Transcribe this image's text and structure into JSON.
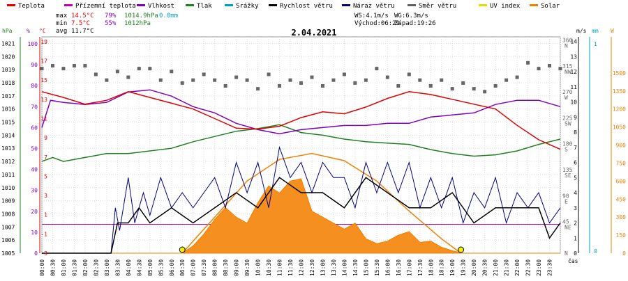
{
  "chart_data": {
    "type": "line",
    "title": "2.04.2021",
    "legend": [
      {
        "name": "Teplota",
        "color": "#e00000"
      },
      {
        "name": "Přízemní teplota",
        "color": "#c000c0"
      },
      {
        "name": "Vlhkost",
        "color": "#8000c0"
      },
      {
        "name": "Tlak",
        "color": "#208020"
      },
      {
        "name": "Srážky",
        "color": "#00a0c0"
      },
      {
        "name": "Rychlost větru",
        "color": "#000000"
      },
      {
        "name": "Náraz větru",
        "color": "#000080"
      },
      {
        "name": "Směr větru",
        "color": "#606060"
      },
      {
        "name": "UV index",
        "color": "#e0e000"
      },
      {
        "name": "Solar",
        "color": "#f08000"
      }
    ],
    "stats": {
      "max_label": "max",
      "max_temp": "14.5°C",
      "max_hum": "79%",
      "max_press": "1014.9hPa",
      "rain": "0.0mm",
      "min_label": "min",
      "min_temp": "7.5°C",
      "min_hum": "55%",
      "min_press": "1012hPa",
      "avg_label": "avg",
      "avg_temp": "11.7°C",
      "ws": "WS:4.1m/s",
      "wg": "WG:6.3m/s",
      "sunrise": "Východ:06:29",
      "sunset": "Západ:19:26"
    },
    "axis_units": {
      "press": "hPa",
      "hum": "%",
      "temp": "°C",
      "wind": "m/s",
      "rain": "mm",
      "solar": "W"
    },
    "x_ticks": [
      "00:00",
      "00:30",
      "01:00",
      "01:30",
      "02:00",
      "02:30",
      "03:00",
      "03:30",
      "04:00",
      "04:30",
      "05:00",
      "05:30",
      "06:00",
      "06:30",
      "07:00",
      "07:30",
      "08:00",
      "08:30",
      "09:00",
      "09:30",
      "10:00",
      "10:30",
      "11:00",
      "11:30",
      "12:00",
      "12:30",
      "13:00",
      "13:30",
      "14:00",
      "14:30",
      "15:00",
      "15:30",
      "16:00",
      "16:30",
      "17:00",
      "17:30",
      "18:00",
      "18:30",
      "19:00",
      "19:30",
      "20:00",
      "20:30",
      "21:00",
      "21:30",
      "22:00",
      "22:30",
      "23:00",
      "23:30"
    ],
    "x_unit": "čas",
    "press_ticks": [
      1005,
      1006,
      1007,
      1008,
      1009,
      1010,
      1011,
      1012,
      1013,
      1014,
      1015,
      1016,
      1017,
      1018,
      1019,
      1020,
      1021
    ],
    "press_range": [
      1005,
      1021.5
    ],
    "hum_ticks": [
      0,
      10,
      20,
      30,
      40,
      50,
      60,
      70,
      80,
      90,
      100
    ],
    "temp_ticks": [
      -3,
      -1,
      1,
      3,
      5,
      7,
      9,
      11,
      13,
      15,
      17,
      19
    ],
    "temp_range": [
      -3,
      19.5
    ],
    "wind_ticks": [
      0,
      1,
      2,
      3,
      4,
      5,
      6,
      7,
      8,
      9,
      10,
      11,
      12,
      13,
      14
    ],
    "dir_ticks": [
      "N",
      "NE",
      "E",
      "SE",
      "S",
      "SW",
      "W",
      "NW",
      "N"
    ],
    "dir_deg_ticks": [
      "45",
      "90",
      "135",
      "180",
      "225",
      "270",
      "315",
      "360"
    ],
    "rain_ticks": [
      "0",
      "1"
    ],
    "solar_ticks": [
      0,
      150,
      300,
      450,
      600,
      750,
      900,
      1050,
      1200,
      1350,
      1500
    ],
    "temperature": [
      [
        0,
        13.8
      ],
      [
        1,
        13.2
      ],
      [
        2,
        12.5
      ],
      [
        3,
        12.9
      ],
      [
        4,
        13.8
      ],
      [
        5,
        13.2
      ],
      [
        6,
        12.6
      ],
      [
        7,
        12.0
      ],
      [
        8,
        11.0
      ],
      [
        9,
        10.0
      ],
      [
        10,
        9.9
      ],
      [
        11,
        10.2
      ],
      [
        12,
        11.1
      ],
      [
        13,
        11.7
      ],
      [
        14,
        11.5
      ],
      [
        15,
        12.2
      ],
      [
        16,
        13.1
      ],
      [
        17,
        13.8
      ],
      [
        18,
        13.5
      ],
      [
        19,
        13.0
      ],
      [
        20,
        12.5
      ],
      [
        21,
        12.0
      ],
      [
        22,
        10.3
      ],
      [
        23,
        8.8
      ],
      [
        24,
        7.8
      ]
    ],
    "humidity": [
      [
        0,
        60
      ],
      [
        0.4,
        73
      ],
      [
        1,
        72
      ],
      [
        2,
        71
      ],
      [
        3,
        72
      ],
      [
        4,
        77
      ],
      [
        5,
        78
      ],
      [
        6,
        75
      ],
      [
        7,
        70
      ],
      [
        8,
        67
      ],
      [
        9,
        62
      ],
      [
        10,
        59
      ],
      [
        11,
        57
      ],
      [
        12,
        59
      ],
      [
        13,
        60
      ],
      [
        14,
        61
      ],
      [
        15,
        61
      ],
      [
        16,
        62
      ],
      [
        17,
        62
      ],
      [
        18,
        65
      ],
      [
        19,
        66
      ],
      [
        20,
        67
      ],
      [
        21,
        71
      ],
      [
        22,
        73
      ],
      [
        23,
        73
      ],
      [
        24,
        70
      ]
    ],
    "pressure": [
      [
        0,
        1012
      ],
      [
        0.5,
        1012.3
      ],
      [
        1,
        1012
      ],
      [
        2,
        1012.3
      ],
      [
        3,
        1012.6
      ],
      [
        4,
        1012.6
      ],
      [
        5,
        1012.8
      ],
      [
        6,
        1013.0
      ],
      [
        7,
        1013.5
      ],
      [
        8,
        1013.9
      ],
      [
        9,
        1014.3
      ],
      [
        10,
        1014.5
      ],
      [
        11,
        1014.8
      ],
      [
        12,
        1014.2
      ],
      [
        13,
        1014.0
      ],
      [
        14,
        1013.7
      ],
      [
        15,
        1013.5
      ],
      [
        16,
        1013.4
      ],
      [
        17,
        1013.3
      ],
      [
        18,
        1012.9
      ],
      [
        19,
        1012.6
      ],
      [
        20,
        1012.4
      ],
      [
        21,
        1012.5
      ],
      [
        22,
        1012.8
      ],
      [
        23,
        1013.3
      ],
      [
        24,
        1013.7
      ]
    ],
    "wind_speed": [
      [
        0,
        0
      ],
      [
        3.2,
        0
      ],
      [
        3.5,
        2
      ],
      [
        4,
        2
      ],
      [
        4.5,
        3
      ],
      [
        5,
        2
      ],
      [
        6,
        3
      ],
      [
        7,
        2
      ],
      [
        8,
        3
      ],
      [
        9,
        4
      ],
      [
        10,
        3
      ],
      [
        11,
        5
      ],
      [
        12,
        4
      ],
      [
        13,
        4
      ],
      [
        14,
        3
      ],
      [
        15,
        5
      ],
      [
        16,
        4
      ],
      [
        17,
        3
      ],
      [
        18,
        3
      ],
      [
        19,
        4
      ],
      [
        20,
        2
      ],
      [
        21,
        3
      ],
      [
        22,
        3
      ],
      [
        23,
        3
      ],
      [
        23.5,
        1
      ],
      [
        24,
        2
      ]
    ],
    "wind_gust": [
      [
        0,
        0
      ],
      [
        3.2,
        0
      ],
      [
        3.4,
        3
      ],
      [
        3.6,
        1.5
      ],
      [
        4,
        5
      ],
      [
        4.3,
        2
      ],
      [
        4.7,
        4
      ],
      [
        5,
        2.5
      ],
      [
        5.5,
        5
      ],
      [
        6,
        3
      ],
      [
        6.5,
        4
      ],
      [
        7,
        3
      ],
      [
        7.5,
        4
      ],
      [
        8,
        5
      ],
      [
        8.5,
        3
      ],
      [
        9,
        6
      ],
      [
        9.5,
        4
      ],
      [
        10,
        6
      ],
      [
        10.5,
        3
      ],
      [
        11,
        7
      ],
      [
        11.5,
        5
      ],
      [
        12,
        6
      ],
      [
        12.5,
        4
      ],
      [
        13,
        6
      ],
      [
        13.5,
        5
      ],
      [
        14,
        5
      ],
      [
        14.5,
        3
      ],
      [
        15,
        6
      ],
      [
        15.5,
        4
      ],
      [
        16,
        6
      ],
      [
        16.5,
        4
      ],
      [
        17,
        6
      ],
      [
        17.5,
        3
      ],
      [
        18,
        5
      ],
      [
        18.5,
        3
      ],
      [
        19,
        5
      ],
      [
        19.5,
        2
      ],
      [
        20,
        4
      ],
      [
        20.5,
        3
      ],
      [
        21,
        5
      ],
      [
        21.5,
        2
      ],
      [
        22,
        4
      ],
      [
        22.5,
        3
      ],
      [
        23,
        4
      ],
      [
        23.5,
        2
      ],
      [
        24,
        3
      ]
    ],
    "wind_direction_points": [
      [
        0,
        320
      ],
      [
        0.5,
        325
      ],
      [
        1,
        320
      ],
      [
        1.5,
        325
      ],
      [
        2,
        325
      ],
      [
        2.5,
        310
      ],
      [
        3,
        300
      ],
      [
        3.5,
        315
      ],
      [
        4,
        305
      ],
      [
        4.5,
        320
      ],
      [
        5,
        320
      ],
      [
        5.5,
        300
      ],
      [
        6,
        315
      ],
      [
        6.5,
        295
      ],
      [
        7,
        300
      ],
      [
        7.5,
        310
      ],
      [
        8,
        300
      ],
      [
        8.5,
        290
      ],
      [
        9,
        305
      ],
      [
        9.5,
        300
      ],
      [
        10,
        285
      ],
      [
        10.5,
        310
      ],
      [
        11,
        290
      ],
      [
        11.5,
        300
      ],
      [
        12,
        295
      ],
      [
        12.5,
        305
      ],
      [
        13,
        290
      ],
      [
        13.5,
        300
      ],
      [
        14,
        310
      ],
      [
        14.5,
        295
      ],
      [
        15,
        300
      ],
      [
        15.5,
        320
      ],
      [
        16,
        305
      ],
      [
        16.5,
        290
      ],
      [
        17,
        310
      ],
      [
        17.5,
        300
      ],
      [
        18,
        290
      ],
      [
        18.5,
        300
      ],
      [
        19,
        285
      ],
      [
        19.5,
        295
      ],
      [
        20,
        285
      ],
      [
        20.5,
        280
      ],
      [
        21,
        290
      ],
      [
        21.5,
        300
      ],
      [
        22,
        305
      ],
      [
        22.5,
        330
      ],
      [
        23,
        320
      ],
      [
        23.5,
        325
      ],
      [
        24,
        320
      ]
    ],
    "solar": [
      [
        0,
        0
      ],
      [
        6.5,
        0
      ],
      [
        7,
        60
      ],
      [
        7.5,
        160
      ],
      [
        8,
        280
      ],
      [
        8.5,
        380
      ],
      [
        9,
        300
      ],
      [
        9.5,
        250
      ],
      [
        10,
        420
      ],
      [
        10.5,
        560
      ],
      [
        11,
        500
      ],
      [
        11.5,
        600
      ],
      [
        12,
        620
      ],
      [
        12.5,
        350
      ],
      [
        13,
        300
      ],
      [
        13.5,
        250
      ],
      [
        14,
        200
      ],
      [
        14.5,
        250
      ],
      [
        15,
        120
      ],
      [
        15.5,
        80
      ],
      [
        16,
        100
      ],
      [
        16.5,
        150
      ],
      [
        17,
        180
      ],
      [
        17.5,
        90
      ],
      [
        18,
        100
      ],
      [
        18.5,
        50
      ],
      [
        19,
        20
      ],
      [
        19.5,
        0
      ],
      [
        24,
        0
      ]
    ],
    "solar_theoretical": [
      [
        6.5,
        0
      ],
      [
        8,
        300
      ],
      [
        9.5,
        600
      ],
      [
        11,
        780
      ],
      [
        12.5,
        830
      ],
      [
        14,
        770
      ],
      [
        15.5,
        600
      ],
      [
        17,
        350
      ],
      [
        18.5,
        120
      ],
      [
        19.4,
        0
      ]
    ],
    "uv_markers": [
      [
        6.5,
        0
      ],
      [
        19.4,
        0
      ]
    ]
  }
}
